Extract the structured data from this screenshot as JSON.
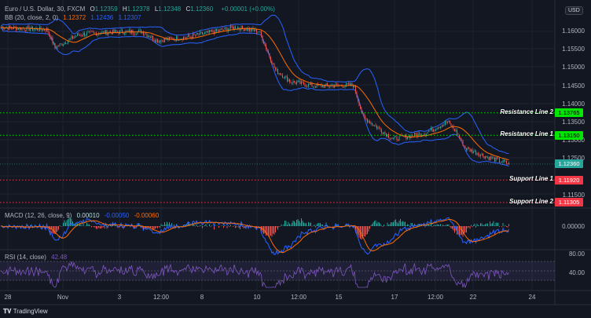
{
  "header": {
    "symbol": "Euro / U.S. Dollar, 30, FXCM",
    "o_label": "O",
    "open": "1.12359",
    "h_label": "H",
    "high": "1.12378",
    "l_label": "L",
    "low": "1.12348",
    "c_label": "C",
    "close": "1.12360",
    "change": "+0.00001 (+0.00%)"
  },
  "bb": {
    "label": "BB (20, close, 2, 0)",
    "basis": "1.12372",
    "upper": "1.12436",
    "lower": "1.12307"
  },
  "currency": "USD",
  "price_axis": [
    "1.16000",
    "1.15500",
    "1.15000",
    "1.14500",
    "1.14000",
    "1.13500",
    "1.13000",
    "1.12500",
    "1.11500"
  ],
  "levels": [
    {
      "name": "Resistance Line 2",
      "value": "1.13765",
      "price": 1.13765,
      "color": "#00e600",
      "type": "resistance"
    },
    {
      "name": "Resistance Line 1",
      "value": "1.13150",
      "price": 1.1315,
      "color": "#00e600",
      "type": "resistance"
    },
    {
      "name": "Support Line 1",
      "value": "1.11920",
      "price": 1.1192,
      "color": "#f23645",
      "type": "support"
    },
    {
      "name": "Support Line 2",
      "value": "1.11305",
      "price": 1.11305,
      "color": "#f23645",
      "type": "support"
    }
  ],
  "current_price": {
    "value": "1.12360",
    "price": 1.1236,
    "color": "#26a69a"
  },
  "macd": {
    "label": "MACD (12, 26, close, 9)",
    "hist": "0.00010",
    "macd": "-0.00050",
    "signal": "-0.00060",
    "axis": "0.00000"
  },
  "rsi": {
    "label": "RSI (14, close)",
    "value": "42.48",
    "axis": [
      "80.00",
      "40.00"
    ]
  },
  "time_axis": [
    "28",
    "Nov",
    "3",
    "12:00",
    "8",
    "10",
    "12:00",
    "15",
    "17",
    "12:00",
    "22",
    "24"
  ],
  "footer": "TradingView",
  "colors": {
    "up": "#26a69a",
    "down": "#ef5350",
    "bb_band": "#2962ff",
    "bb_basis": "#ff6d00",
    "rsi": "#7e57c2"
  }
}
